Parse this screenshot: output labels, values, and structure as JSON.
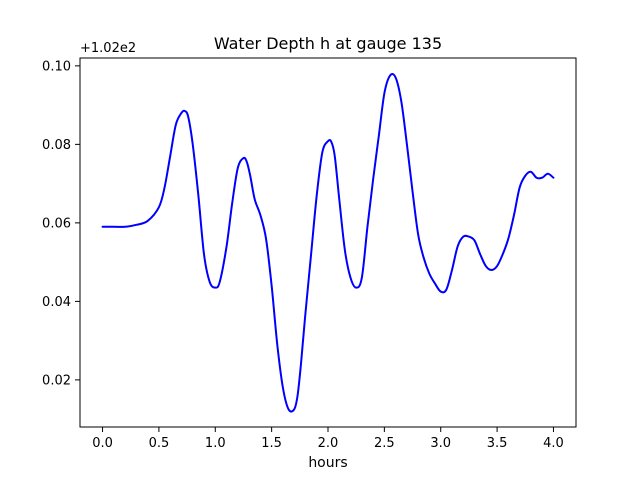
{
  "chart_data": {
    "type": "line",
    "title": "Water Depth h at gauge 135",
    "xlabel": "hours",
    "ylabel": "",
    "offset_label": "+1.02e2",
    "xlim": [
      -0.2,
      4.2
    ],
    "ylim": [
      0.008,
      0.102
    ],
    "xticks": [
      0.0,
      0.5,
      1.0,
      1.5,
      2.0,
      2.5,
      3.0,
      3.5,
      4.0
    ],
    "xtick_labels": [
      "0.0",
      "0.5",
      "1.0",
      "1.5",
      "2.0",
      "2.5",
      "3.0",
      "3.5",
      "4.0"
    ],
    "yticks": [
      0.02,
      0.04,
      0.06,
      0.08,
      0.1
    ],
    "ytick_labels": [
      "0.02",
      "0.04",
      "0.06",
      "0.08",
      "0.10"
    ],
    "grid": false,
    "legend": "none",
    "series": [
      {
        "color": "#0000ff",
        "x": [
          0.0,
          0.1,
          0.2,
          0.3,
          0.4,
          0.5,
          0.55,
          0.6,
          0.65,
          0.7,
          0.73,
          0.76,
          0.8,
          0.85,
          0.9,
          0.95,
          1.0,
          1.04,
          1.1,
          1.15,
          1.2,
          1.25,
          1.28,
          1.31,
          1.35,
          1.4,
          1.45,
          1.5,
          1.55,
          1.6,
          1.65,
          1.7,
          1.73,
          1.76,
          1.8,
          1.85,
          1.9,
          1.95,
          2.0,
          2.03,
          2.06,
          2.1,
          2.15,
          2.2,
          2.25,
          2.3,
          2.35,
          2.4,
          2.45,
          2.5,
          2.55,
          2.6,
          2.65,
          2.7,
          2.75,
          2.8,
          2.85,
          2.9,
          2.95,
          3.0,
          3.05,
          3.1,
          3.15,
          3.2,
          3.25,
          3.3,
          3.35,
          3.4,
          3.45,
          3.5,
          3.55,
          3.6,
          3.65,
          3.7,
          3.75,
          3.8,
          3.85,
          3.9,
          3.95,
          4.0
        ],
        "y": [
          0.059,
          0.059,
          0.059,
          0.0595,
          0.0605,
          0.064,
          0.069,
          0.077,
          0.085,
          0.088,
          0.0885,
          0.087,
          0.08,
          0.067,
          0.052,
          0.045,
          0.0435,
          0.045,
          0.054,
          0.065,
          0.074,
          0.0765,
          0.0755,
          0.072,
          0.066,
          0.062,
          0.056,
          0.044,
          0.029,
          0.018,
          0.0125,
          0.0125,
          0.016,
          0.024,
          0.037,
          0.052,
          0.067,
          0.078,
          0.0808,
          0.0806,
          0.077,
          0.066,
          0.053,
          0.046,
          0.0435,
          0.046,
          0.059,
          0.071,
          0.082,
          0.093,
          0.0975,
          0.097,
          0.091,
          0.08,
          0.068,
          0.057,
          0.051,
          0.047,
          0.0445,
          0.0425,
          0.043,
          0.048,
          0.054,
          0.0565,
          0.0565,
          0.0555,
          0.052,
          0.049,
          0.048,
          0.049,
          0.052,
          0.056,
          0.062,
          0.069,
          0.072,
          0.073,
          0.0715,
          0.0715,
          0.0725,
          0.0715
        ]
      }
    ]
  }
}
